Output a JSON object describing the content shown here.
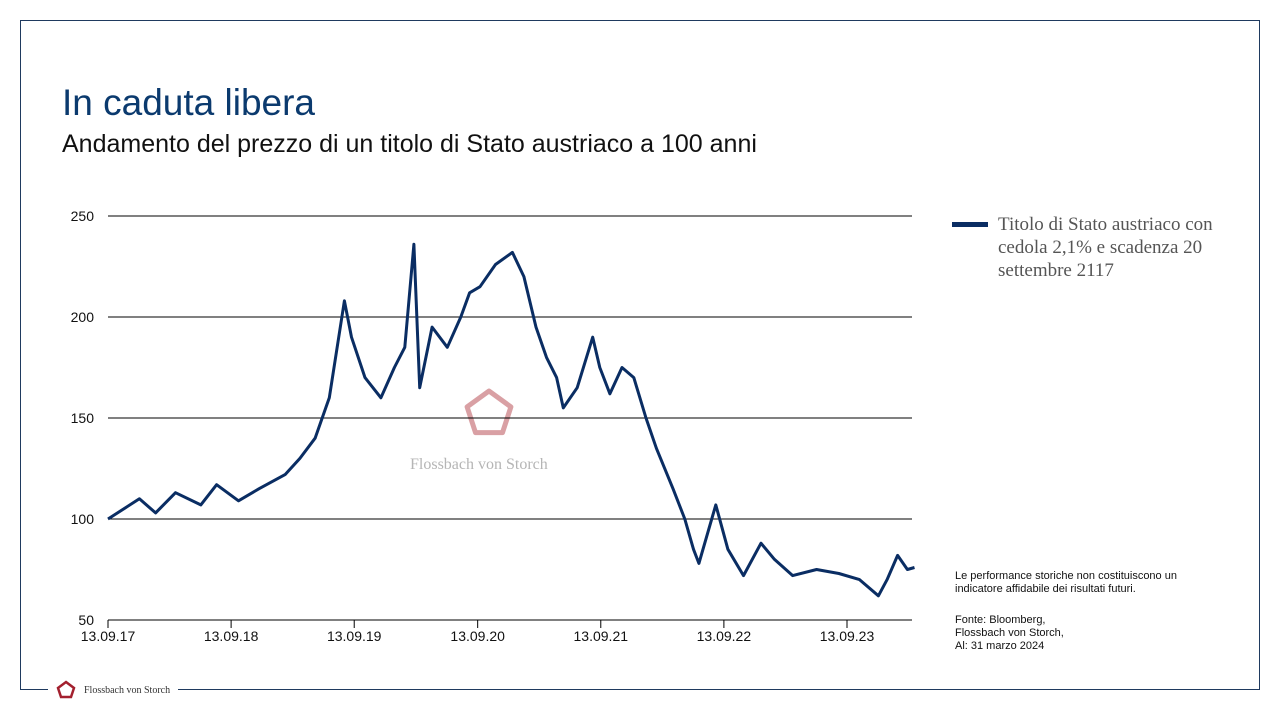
{
  "header": {
    "title": "In caduta libera",
    "subtitle": "Andamento del prezzo di un titolo di Stato austriaco a 100 anni"
  },
  "watermark": {
    "text": "Flossbach von Storch",
    "color": "#d9a0a4"
  },
  "footer": {
    "brand": "Flossbach von Storch",
    "logo_color": "#a3202e"
  },
  "notes": {
    "disclaimer": "Le performance storiche non costituiscono un indicatore affidabile dei risultati futuri.",
    "source_lines": [
      "Fonte: Bloomberg,",
      "Flossbach von Storch,",
      "Al: 31 marzo 2024"
    ]
  },
  "colors": {
    "line": "#0a2d63",
    "title": "#0b3a6e"
  },
  "chart_data": {
    "type": "line",
    "title": "",
    "xlabel": "",
    "ylabel": "",
    "ylim": [
      50,
      250
    ],
    "yticks": [
      50,
      100,
      150,
      200,
      250
    ],
    "xticks": [
      "13.09.17",
      "13.09.18",
      "13.09.19",
      "13.09.20",
      "13.09.21",
      "13.09.22",
      "13.09.23"
    ],
    "xtick_dates": [
      "2017-09-13",
      "2018-09-13",
      "2019-09-13",
      "2020-09-13",
      "2021-09-13",
      "2022-09-13",
      "2023-09-13"
    ],
    "xlim": [
      "2017-09-13",
      "2024-03-31"
    ],
    "grid": "horizontal",
    "legend_position": "right",
    "series": [
      {
        "name": "Titolo di Stato austriaco con cedola 2,1% e scadenza 20 settembre 2117",
        "color": "#0a2d63",
        "points": [
          [
            "2017-09-13",
            100
          ],
          [
            "2017-12-15",
            110
          ],
          [
            "2018-02-01",
            103
          ],
          [
            "2018-04-01",
            113
          ],
          [
            "2018-06-15",
            107
          ],
          [
            "2018-08-01",
            117
          ],
          [
            "2018-10-05",
            109
          ],
          [
            "2018-12-05",
            115
          ],
          [
            "2019-02-20",
            122
          ],
          [
            "2019-04-05",
            130
          ],
          [
            "2019-05-20",
            140
          ],
          [
            "2019-07-01",
            160
          ],
          [
            "2019-08-15",
            208
          ],
          [
            "2019-09-05",
            190
          ],
          [
            "2019-10-15",
            170
          ],
          [
            "2019-12-01",
            160
          ],
          [
            "2020-01-10",
            175
          ],
          [
            "2020-02-10",
            185
          ],
          [
            "2020-03-08",
            236
          ],
          [
            "2020-03-25",
            165
          ],
          [
            "2020-05-01",
            195
          ],
          [
            "2020-06-15",
            185
          ],
          [
            "2020-07-25",
            200
          ],
          [
            "2020-08-20",
            212
          ],
          [
            "2020-09-20",
            215
          ],
          [
            "2020-11-05",
            226
          ],
          [
            "2020-12-25",
            232
          ],
          [
            "2021-01-28",
            220
          ],
          [
            "2021-03-05",
            195
          ],
          [
            "2021-04-05",
            180
          ],
          [
            "2021-05-05",
            170
          ],
          [
            "2021-05-25",
            155
          ],
          [
            "2021-07-05",
            165
          ],
          [
            "2021-08-20",
            190
          ],
          [
            "2021-09-10",
            175
          ],
          [
            "2021-10-10",
            162
          ],
          [
            "2021-11-15",
            175
          ],
          [
            "2021-12-20",
            170
          ],
          [
            "2022-01-25",
            150
          ],
          [
            "2022-02-25",
            135
          ],
          [
            "2022-04-15",
            115
          ],
          [
            "2022-05-20",
            100
          ],
          [
            "2022-06-15",
            85
          ],
          [
            "2022-07-01",
            78
          ],
          [
            "2022-08-20",
            107
          ],
          [
            "2022-09-25",
            85
          ],
          [
            "2022-11-10",
            72
          ],
          [
            "2023-01-01",
            88
          ],
          [
            "2023-02-10",
            80
          ],
          [
            "2023-04-05",
            72
          ],
          [
            "2023-06-15",
            75
          ],
          [
            "2023-08-20",
            73
          ],
          [
            "2023-10-20",
            70
          ],
          [
            "2023-12-15",
            62
          ],
          [
            "2024-01-10",
            70
          ],
          [
            "2024-02-10",
            82
          ],
          [
            "2024-03-10",
            75
          ],
          [
            "2024-03-31",
            76
          ]
        ]
      }
    ]
  }
}
